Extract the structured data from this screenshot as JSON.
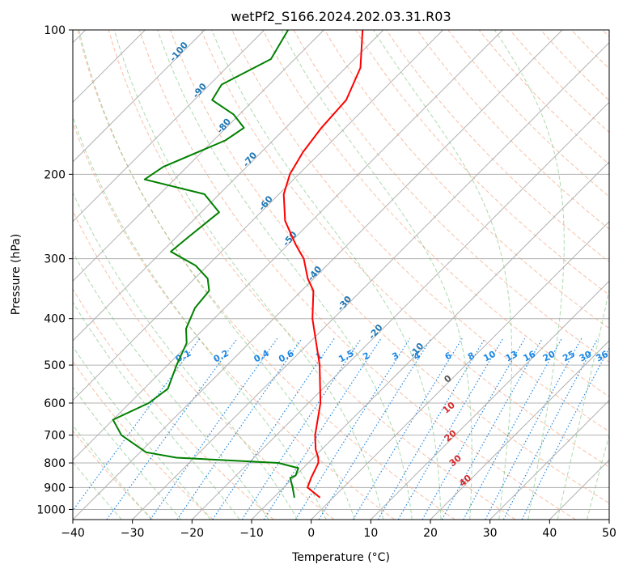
{
  "chart_data": {
    "type": "skew-t log-p",
    "title": "wetPf2_S166.2024.202.03.31.R03",
    "xlabel": "Temperature (°C)",
    "ylabel": "Pressure (hPa)",
    "xlim": [
      -40,
      50
    ],
    "ylim": [
      1050,
      100
    ],
    "log_y": true,
    "grid": true,
    "x_ticks": [
      -40,
      -30,
      -20,
      -10,
      0,
      10,
      20,
      30,
      40,
      50
    ],
    "x_tick_labels": [
      "−40",
      "−30",
      "−20",
      "−10",
      "0",
      "10",
      "20",
      "30",
      "40",
      "50"
    ],
    "y_ticks": [
      1000,
      900,
      800,
      700,
      600,
      500,
      400,
      300,
      200,
      100
    ],
    "y_tick_labels": [
      "1000",
      "900",
      "800",
      "700",
      "600",
      "500",
      "400",
      "300",
      "200",
      "100"
    ],
    "dry_adiabat_labels": [
      "-100",
      "-90",
      "-80",
      "-70",
      "-60",
      "-50",
      "-40",
      "-30",
      "-20",
      "-10"
    ],
    "moist_adiabat_labels": [
      "0",
      "10",
      "20",
      "30",
      "40"
    ],
    "mixing_ratio_labels": [
      "0.1",
      "0.2",
      "0.4",
      "0.6",
      "1",
      "1.5",
      "2",
      "3",
      "4",
      "6",
      "8",
      "10",
      "13",
      "16",
      "20",
      "25",
      "30",
      "36"
    ],
    "series": [
      {
        "color": "#ff0000",
        "pressure": [
          945,
          900,
          860,
          800,
          780,
          750,
          700,
          600,
          500,
          400,
          350,
          330,
          300,
          280,
          250,
          220,
          200,
          180,
          160,
          140,
          120,
          100
        ],
        "values": [
          -2.2,
          -6.0,
          -7.0,
          -8.3,
          -9.2,
          -11.0,
          -13.5,
          -18.0,
          -24.5,
          -33.5,
          -38.0,
          -41.0,
          -45.0,
          -48.8,
          -54.5,
          -59.2,
          -61.5,
          -63.0,
          -64.0,
          -64.5,
          -67.5,
          -73.5
        ]
      },
      {
        "color": "#008000",
        "pressure": [
          945,
          900,
          860,
          850,
          820,
          800,
          780,
          760,
          700,
          650,
          600,
          560,
          500,
          450,
          420,
          380,
          350,
          330,
          310,
          290,
          270,
          240,
          220,
          205,
          193,
          170,
          160,
          150,
          140,
          130,
          115,
          100
        ],
        "values": [
          -6.5,
          -8.5,
          -10.5,
          -10.0,
          -10.8,
          -15.0,
          -33.0,
          -39.0,
          -46.0,
          -50.0,
          -46.8,
          -46.0,
          -48.5,
          -50.5,
          -53.0,
          -55.0,
          -55.5,
          -57.8,
          -62.0,
          -68.5,
          -68.0,
          -67.0,
          -72.5,
          -85.0,
          -84.0,
          -78.0,
          -77.0,
          -81.0,
          -87.0,
          -88.0,
          -84.0,
          -86.0
        ]
      }
    ]
  }
}
